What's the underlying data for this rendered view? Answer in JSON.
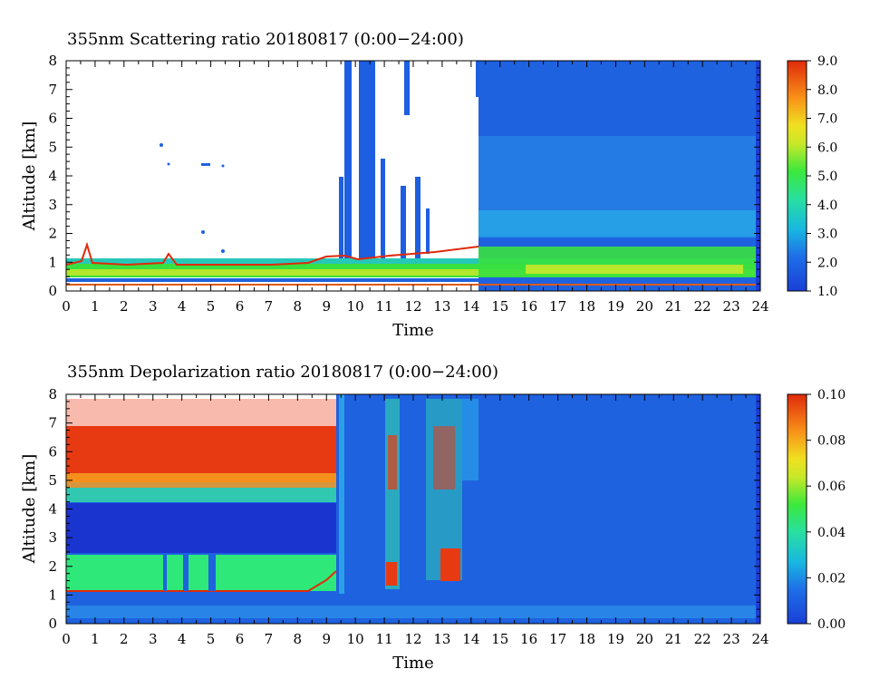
{
  "charts": [
    {
      "title": "355nm Scattering ratio  20180817 (0:00−24:00)",
      "xlabel": "Time",
      "ylabel": "Altitude [km]",
      "colorbar_labels": [
        "1.0",
        "2.0",
        "3.0",
        "4.0",
        "5.0",
        "6.0",
        "7.0",
        "8.0",
        "9.0"
      ],
      "colors": {
        "low": "#1a3fd6",
        "mid": "#28e028",
        "high": "#e02a0a"
      }
    },
    {
      "title": "355nm Depolarization ratio  20180817 (0:00−24:00)",
      "xlabel": "Time",
      "ylabel": "Altitude [km]",
      "colorbar_labels": [
        "0.00",
        "0.02",
        "0.04",
        "0.06",
        "0.08",
        "0.10"
      ],
      "colors": {
        "low": "#1a3fd6",
        "mid": "#28e028",
        "high": "#e02a0a"
      }
    }
  ],
  "chart_data": [
    {
      "type": "heatmap",
      "title": "355nm Scattering ratio  20180817 (0:00−24:00)",
      "xlabel": "Time",
      "ylabel": "Altitude [km]",
      "x_ticks": [
        0,
        1,
        2,
        3,
        4,
        5,
        6,
        7,
        8,
        9,
        10,
        11,
        12,
        13,
        14,
        15,
        16,
        17,
        18,
        19,
        20,
        21,
        22,
        23,
        24
      ],
      "y_ticks": [
        0,
        1,
        2,
        3,
        4,
        5,
        6,
        7,
        8
      ],
      "xlim": [
        0,
        24
      ],
      "ylim": [
        0,
        8
      ],
      "color_range": [
        1.0,
        9.0
      ],
      "colorbar_ticks": [
        1.0,
        2.0,
        3.0,
        4.0,
        5.0,
        6.0,
        7.0,
        8.0,
        9.0
      ],
      "features": [
        {
          "time": [
            0,
            14.3
          ],
          "altitude": [
            0.3,
            1.0
          ],
          "value": 5.0,
          "note": "boundary layer, no data (white) above"
        },
        {
          "time": [
            14.3,
            24
          ],
          "altitude": [
            0.3,
            1.4
          ],
          "value": 4.5
        },
        {
          "time": [
            14.3,
            24
          ],
          "altitude": [
            1.4,
            8.0
          ],
          "value": 2.0
        },
        {
          "time": [
            9.3,
            14.3
          ],
          "altitude": [
            1.0,
            8.0
          ],
          "value": 1.5,
          "note": "streaks"
        }
      ]
    },
    {
      "type": "heatmap",
      "title": "355nm Depolarization ratio  20180817 (0:00−24:00)",
      "xlabel": "Time",
      "ylabel": "Altitude [km]",
      "x_ticks": [
        0,
        1,
        2,
        3,
        4,
        5,
        6,
        7,
        8,
        9,
        10,
        11,
        12,
        13,
        14,
        15,
        16,
        17,
        18,
        19,
        20,
        21,
        22,
        23,
        24
      ],
      "y_ticks": [
        0,
        1,
        2,
        3,
        4,
        5,
        6,
        7,
        8
      ],
      "xlim": [
        0,
        24
      ],
      "ylim": [
        0,
        8
      ],
      "color_range": [
        0.0,
        0.1
      ],
      "colorbar_ticks": [
        0.0,
        0.02,
        0.04,
        0.06,
        0.08,
        0.1
      ],
      "features": [
        {
          "time": [
            0,
            9.3
          ],
          "altitude": [
            5.0,
            8.0
          ],
          "value": 0.09
        },
        {
          "time": [
            0,
            9.3
          ],
          "altitude": [
            2.6,
            4.3
          ],
          "value": 0.003
        },
        {
          "time": [
            0,
            9.3
          ],
          "altitude": [
            1.1,
            2.6
          ],
          "value": 0.045
        },
        {
          "time": [
            9.3,
            24
          ],
          "altitude": [
            0.0,
            8.0
          ],
          "value": 0.012
        }
      ]
    }
  ]
}
